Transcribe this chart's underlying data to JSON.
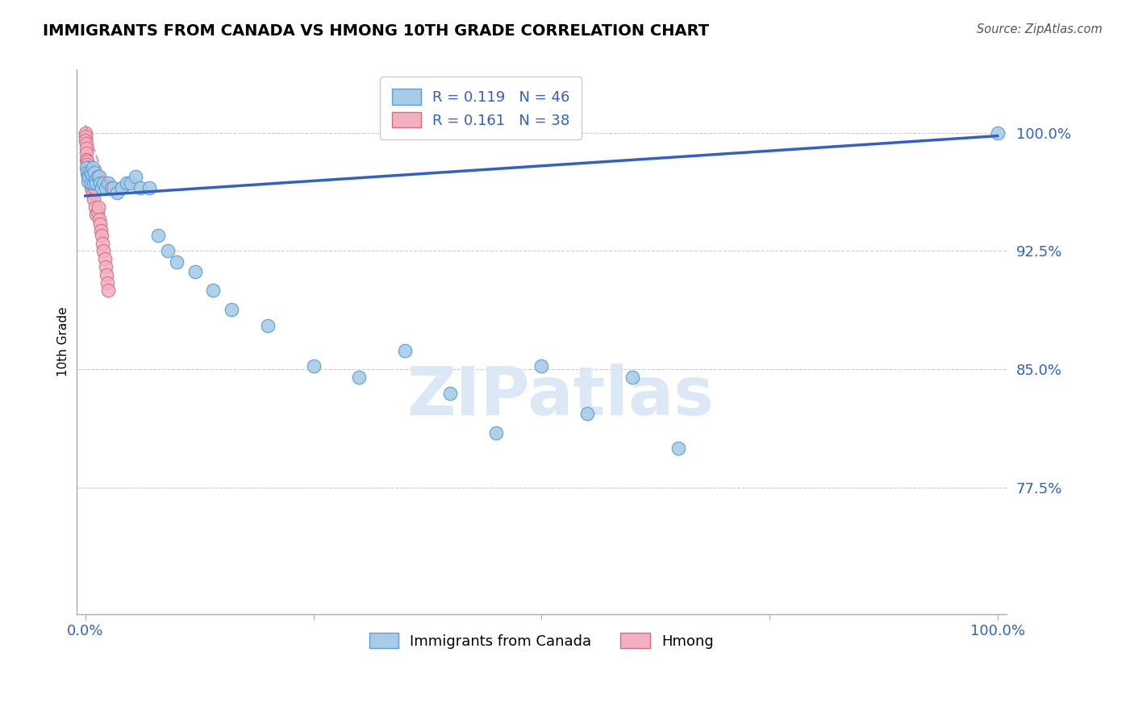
{
  "title": "IMMIGRANTS FROM CANADA VS HMONG 10TH GRADE CORRELATION CHART",
  "source_text": "Source: ZipAtlas.com",
  "ylabel": "10th Grade",
  "xlim": [
    -0.01,
    1.01
  ],
  "ylim": [
    0.695,
    1.04
  ],
  "yticks": [
    0.775,
    0.85,
    0.925,
    1.0
  ],
  "ytick_labels": [
    "77.5%",
    "85.0%",
    "92.5%",
    "100.0%"
  ],
  "xtick_positions": [
    0.0,
    0.25,
    0.5,
    0.75,
    1.0
  ],
  "xtick_labels": [
    "0.0%",
    "",
    "",
    "",
    "100.0%"
  ],
  "R_blue": 0.119,
  "N_blue": 46,
  "R_pink": 0.161,
  "N_pink": 38,
  "blue_color": "#a8cce8",
  "blue_edge": "#5a9fd4",
  "pink_color": "#f4b0c0",
  "pink_edge": "#d07080",
  "line_color": "#3060c8",
  "pink_line_color": "#e888a0",
  "legend_label_blue": "Immigrants from Canada",
  "legend_label_pink": "Hmong",
  "blue_line_x": [
    0.0,
    1.0
  ],
  "blue_line_y": [
    0.96,
    0.998
  ],
  "pink_line_x": [
    0.0,
    0.025
  ],
  "pink_line_y": [
    1.005,
    0.964
  ],
  "blue_scatter_x": [
    0.001,
    0.002,
    0.003,
    0.003,
    0.004,
    0.005,
    0.006,
    0.007,
    0.008,
    0.009,
    0.01,
    0.011,
    0.012,
    0.013,
    0.015,
    0.016,
    0.018,
    0.02,
    0.022,
    0.025,
    0.028,
    0.03,
    0.035,
    0.04,
    0.045,
    0.05,
    0.055,
    0.06,
    0.07,
    0.08,
    0.09,
    0.1,
    0.12,
    0.14,
    0.16,
    0.2,
    0.25,
    0.3,
    0.35,
    0.4,
    0.45,
    0.5,
    0.55,
    0.6,
    0.65,
    1.0
  ],
  "blue_scatter_y": [
    0.978,
    0.975,
    0.973,
    0.969,
    0.972,
    0.975,
    0.968,
    0.974,
    0.978,
    0.968,
    0.975,
    0.97,
    0.968,
    0.972,
    0.972,
    0.968,
    0.965,
    0.968,
    0.965,
    0.968,
    0.965,
    0.965,
    0.962,
    0.965,
    0.968,
    0.968,
    0.972,
    0.965,
    0.965,
    0.935,
    0.925,
    0.918,
    0.912,
    0.9,
    0.888,
    0.878,
    0.852,
    0.845,
    0.862,
    0.835,
    0.81,
    0.852,
    0.822,
    0.845,
    0.8,
    1.0
  ],
  "pink_scatter_x": [
    0.0002,
    0.0004,
    0.0005,
    0.0007,
    0.0009,
    0.001,
    0.001,
    0.0015,
    0.002,
    0.002,
    0.0025,
    0.003,
    0.003,
    0.004,
    0.004,
    0.005,
    0.005,
    0.006,
    0.006,
    0.007,
    0.008,
    0.009,
    0.01,
    0.011,
    0.012,
    0.013,
    0.014,
    0.015,
    0.016,
    0.017,
    0.018,
    0.019,
    0.02,
    0.021,
    0.022,
    0.023,
    0.024,
    0.025
  ],
  "pink_scatter_y": [
    1.0,
    0.998,
    0.995,
    0.993,
    0.99,
    0.987,
    0.983,
    0.982,
    0.98,
    0.977,
    0.978,
    0.978,
    0.973,
    0.978,
    0.972,
    0.975,
    0.968,
    0.972,
    0.965,
    0.968,
    0.962,
    0.958,
    0.965,
    0.953,
    0.948,
    0.95,
    0.953,
    0.945,
    0.942,
    0.938,
    0.935,
    0.93,
    0.925,
    0.92,
    0.915,
    0.91,
    0.905,
    0.9
  ]
}
